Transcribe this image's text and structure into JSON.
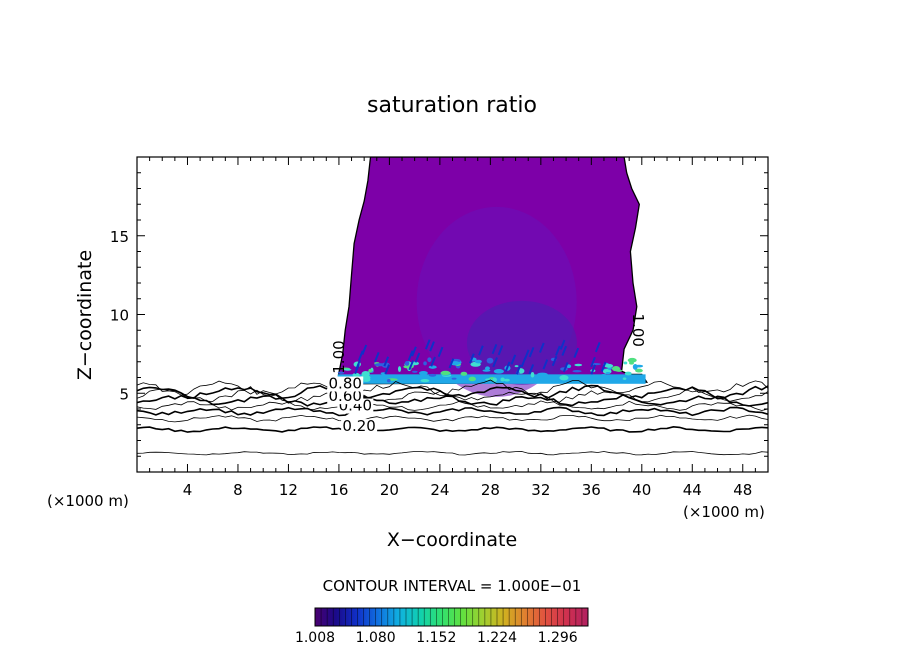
{
  "chart_data": {
    "type": "contour",
    "title": "saturation ratio",
    "xlabel": "X−coordinate",
    "ylabel": "Z−coordinate",
    "x_unit_left": "(×1000 m)",
    "x_unit_right": "(×1000 m)",
    "xlim": [
      0,
      50
    ],
    "ylim": [
      0,
      20
    ],
    "x_ticks": [
      4,
      8,
      12,
      16,
      20,
      24,
      28,
      32,
      36,
      40,
      44,
      48
    ],
    "y_ticks": [
      5,
      10,
      15
    ],
    "contour_interval_text": "CONTOUR INTERVAL = 1.000E−01",
    "contour_line_levels": [
      0.1,
      0.2,
      0.3,
      0.4,
      0.5,
      0.6,
      0.7,
      0.8,
      0.9
    ],
    "contour_line_heights": [
      1.2,
      2.7,
      3.4,
      3.85,
      4.2,
      4.55,
      4.85,
      5.1,
      5.35
    ],
    "contour_labels": [
      {
        "text": "0.20",
        "x": 17.6,
        "y": 2.6
      },
      {
        "text": "0.40",
        "x": 17.3,
        "y": 3.9
      },
      {
        "text": "0.60",
        "x": 16.5,
        "y": 4.5
      },
      {
        "text": "0.80",
        "x": 16.5,
        "y": 5.3
      },
      {
        "text": "1.00",
        "x": 16.4,
        "y": 7.3,
        "rotate": -90
      },
      {
        "text": "1.00",
        "x": 39.3,
        "y": 9.0,
        "rotate": 90
      }
    ],
    "colorbar": {
      "min": 1.008,
      "max": 1.332,
      "tick_labels": [
        "1.008",
        "1.080",
        "1.152",
        "1.224",
        "1.296"
      ],
      "colors": [
        "#4a0070",
        "#1a0a8a",
        "#1030c8",
        "#1070e0",
        "#10b0e0",
        "#10d0b0",
        "#30e070",
        "#60e040",
        "#a0d030",
        "#d0b020",
        "#e08030",
        "#e05040",
        "#d03050",
        "#b02060"
      ]
    },
    "cloud_fill_color": "#7d00a8",
    "cloud_inner_color": "#6a10b8",
    "cloud_core_color": "#4a20b0",
    "cloud_base_colors": [
      "#20a8e8",
      "#40e0d0",
      "#3060e0",
      "#50e080"
    ]
  }
}
